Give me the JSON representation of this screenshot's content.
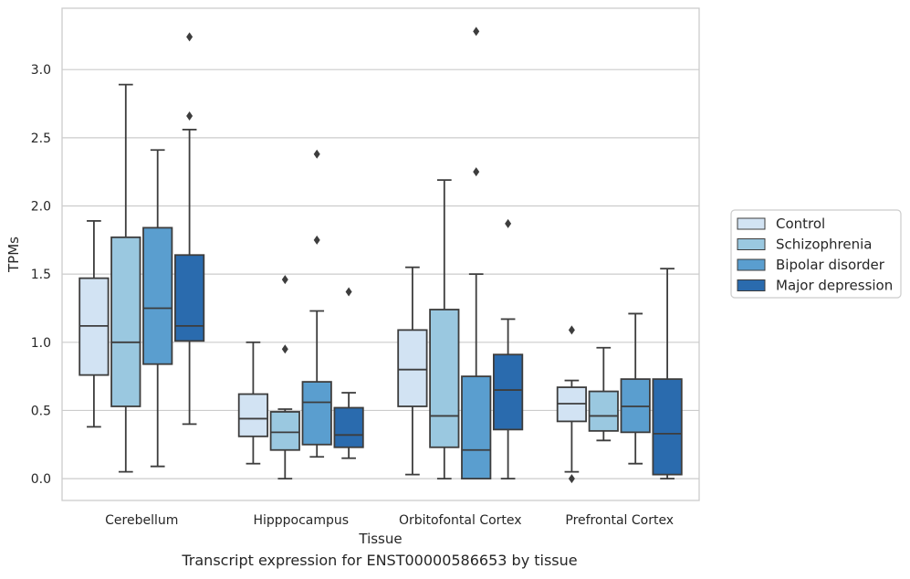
{
  "chart_data": {
    "type": "box",
    "xlabel": "Tissue",
    "ylabel": "TPMs",
    "ylim": [
      -0.16,
      3.45
    ],
    "yticks": [
      "0.0",
      "0.5",
      "1.0",
      "1.5",
      "2.0",
      "2.5",
      "3.0"
    ],
    "grid": true,
    "legend_position": "right",
    "categories": [
      "Cerebellum",
      "Hipppocampus",
      "Orbitofontal Cortex",
      "Prefrontal Cortex"
    ],
    "series": [
      {
        "name": "Control",
        "color": "#d2e3f3",
        "boxes": [
          {
            "whislo": 0.38,
            "q1": 0.76,
            "med": 1.12,
            "q3": 1.47,
            "whishi": 1.89,
            "fliers": []
          },
          {
            "whislo": 0.11,
            "q1": 0.31,
            "med": 0.44,
            "q3": 0.62,
            "whishi": 1.0,
            "fliers": []
          },
          {
            "whislo": 0.03,
            "q1": 0.53,
            "med": 0.8,
            "q3": 1.09,
            "whishi": 1.55,
            "fliers": []
          },
          {
            "whislo": 0.05,
            "q1": 0.42,
            "med": 0.55,
            "q3": 0.67,
            "whishi": 0.72,
            "fliers": [
              0.0,
              1.09
            ]
          }
        ]
      },
      {
        "name": "Schizophrenia",
        "color": "#9ac8e0",
        "boxes": [
          {
            "whislo": 0.05,
            "q1": 0.53,
            "med": 1.0,
            "q3": 1.77,
            "whishi": 2.89,
            "fliers": []
          },
          {
            "whislo": 0.0,
            "q1": 0.21,
            "med": 0.34,
            "q3": 0.49,
            "whishi": 0.51,
            "fliers": [
              0.95,
              1.46
            ]
          },
          {
            "whislo": 0.0,
            "q1": 0.23,
            "med": 0.46,
            "q3": 1.24,
            "whishi": 2.19,
            "fliers": []
          },
          {
            "whislo": 0.28,
            "q1": 0.35,
            "med": 0.46,
            "q3": 0.64,
            "whishi": 0.96,
            "fliers": []
          }
        ]
      },
      {
        "name": "Bipolar disorder",
        "color": "#5a9ecf",
        "boxes": [
          {
            "whislo": 0.09,
            "q1": 0.84,
            "med": 1.25,
            "q3": 1.84,
            "whishi": 2.41,
            "fliers": []
          },
          {
            "whislo": 0.16,
            "q1": 0.25,
            "med": 0.56,
            "q3": 0.71,
            "whishi": 1.23,
            "fliers": [
              1.75,
              2.38
            ]
          },
          {
            "whislo": 0.0,
            "q1": 0.0,
            "med": 0.21,
            "q3": 0.75,
            "whishi": 1.5,
            "fliers": [
              2.25,
              3.28
            ]
          },
          {
            "whislo": 0.11,
            "q1": 0.34,
            "med": 0.53,
            "q3": 0.73,
            "whishi": 1.21,
            "fliers": []
          }
        ]
      },
      {
        "name": "Major depression",
        "color": "#2a6bae",
        "boxes": [
          {
            "whislo": 0.4,
            "q1": 1.01,
            "med": 1.12,
            "q3": 1.64,
            "whishi": 2.56,
            "fliers": [
              2.66,
              3.24
            ]
          },
          {
            "whislo": 0.15,
            "q1": 0.23,
            "med": 0.32,
            "q3": 0.52,
            "whishi": 0.63,
            "fliers": [
              1.37
            ]
          },
          {
            "whislo": 0.0,
            "q1": 0.36,
            "med": 0.65,
            "q3": 0.91,
            "whishi": 1.17,
            "fliers": [
              1.87
            ]
          },
          {
            "whislo": 0.0,
            "q1": 0.03,
            "med": 0.33,
            "q3": 0.73,
            "whishi": 1.54,
            "fliers": []
          }
        ]
      }
    ],
    "caption": "Transcript expression for ENST00000586653 by tissue"
  }
}
